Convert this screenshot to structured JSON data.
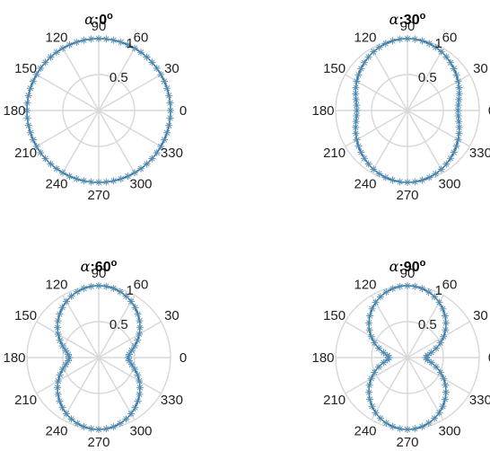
{
  "chart_data": [
    {
      "type": "line",
      "coordinate_system": "polar",
      "subplot": 1,
      "title_symbol": "α",
      "title_value": ":0",
      "title_unit": "o",
      "r_ticks": [
        0.5,
        1
      ],
      "r_tick_labels": [
        "0.5",
        "1"
      ],
      "rlim": [
        0,
        1
      ],
      "theta_ticks": [
        0,
        30,
        60,
        90,
        120,
        150,
        180,
        210,
        240,
        270,
        300,
        330
      ],
      "theta_tick_labels": [
        "0",
        "30",
        "60",
        "90",
        "120",
        "150",
        "180",
        "210",
        "240",
        "270",
        "300",
        "330"
      ],
      "grid": true,
      "marker": "*",
      "ratio": 1.0
    },
    {
      "type": "line",
      "coordinate_system": "polar",
      "subplot": 2,
      "title_symbol": "α",
      "title_value": ":30",
      "title_unit": "o",
      "r_ticks": [
        0.5,
        1
      ],
      "r_tick_labels": [
        "0.5",
        "1"
      ],
      "rlim": [
        0,
        1
      ],
      "theta_ticks": [
        0,
        30,
        60,
        90,
        120,
        150,
        180,
        210,
        240,
        270,
        300,
        330
      ],
      "theta_tick_labels": [
        "0",
        "30",
        "60",
        "90",
        "120",
        "150",
        "180",
        "210",
        "240",
        "270",
        "300",
        "330"
      ],
      "grid": true,
      "marker": "*",
      "ratio": 0.75
    },
    {
      "type": "line",
      "coordinate_system": "polar",
      "subplot": 3,
      "title_symbol": "α",
      "title_value": ":60",
      "title_unit": "o",
      "r_ticks": [
        0.5,
        1
      ],
      "r_tick_labels": [
        "0.5",
        "1"
      ],
      "rlim": [
        0,
        1
      ],
      "theta_ticks": [
        0,
        30,
        60,
        90,
        120,
        150,
        180,
        210,
        240,
        270,
        300,
        330
      ],
      "theta_tick_labels": [
        "0",
        "30",
        "60",
        "90",
        "120",
        "150",
        "180",
        "210",
        "240",
        "270",
        "300",
        "330"
      ],
      "grid": true,
      "marker": "*",
      "ratio": 0.5
    },
    {
      "type": "line",
      "coordinate_system": "polar",
      "subplot": 4,
      "title_symbol": "α",
      "title_value": ":90",
      "title_unit": "o",
      "r_ticks": [
        0.5,
        1
      ],
      "r_tick_labels": [
        "0.5",
        "1"
      ],
      "rlim": [
        0,
        1
      ],
      "theta_ticks": [
        0,
        30,
        60,
        90,
        120,
        150,
        180,
        210,
        240,
        270,
        300,
        330
      ],
      "theta_tick_labels": [
        "0",
        "30",
        "60",
        "90",
        "120",
        "150",
        "180",
        "210",
        "240",
        "270",
        "300",
        "330"
      ],
      "grid": true,
      "marker": "*",
      "ratio": 0.37
    }
  ],
  "colors": {
    "series": "#3b6f92",
    "marker": "#4f8bb4",
    "grid": "#d7d7d7"
  }
}
